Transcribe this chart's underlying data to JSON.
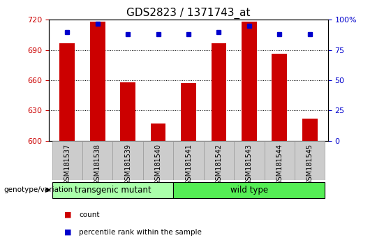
{
  "title": "GDS2823 / 1371743_at",
  "samples": [
    "GSM181537",
    "GSM181538",
    "GSM181539",
    "GSM181540",
    "GSM181541",
    "GSM181542",
    "GSM181543",
    "GSM181544",
    "GSM181545"
  ],
  "bar_values": [
    697,
    718,
    658,
    617,
    657,
    697,
    718,
    686,
    622
  ],
  "percentile_values": [
    90,
    97,
    88,
    88,
    88,
    90,
    95,
    88,
    88
  ],
  "bar_color": "#cc0000",
  "percentile_color": "#0000cc",
  "ylim_left": [
    600,
    720
  ],
  "yticks_left": [
    600,
    630,
    660,
    690,
    720
  ],
  "ylim_right": [
    0,
    100
  ],
  "yticks_right": [
    0,
    25,
    50,
    75,
    100
  ],
  "groups": [
    {
      "label": "transgenic mutant",
      "start": 0,
      "end": 3,
      "color": "#aaffaa"
    },
    {
      "label": "wild type",
      "start": 4,
      "end": 8,
      "color": "#55ee55"
    }
  ],
  "group_label": "genotype/variation",
  "legend_items": [
    {
      "label": "count",
      "color": "#cc0000"
    },
    {
      "label": "percentile rank within the sample",
      "color": "#0000cc"
    }
  ],
  "background_color": "#ffffff",
  "tick_bg_color": "#cccccc",
  "grid_color": "#000000",
  "title_fontsize": 11,
  "axis_label_color_left": "#cc0000",
  "axis_label_color_right": "#0000cc"
}
